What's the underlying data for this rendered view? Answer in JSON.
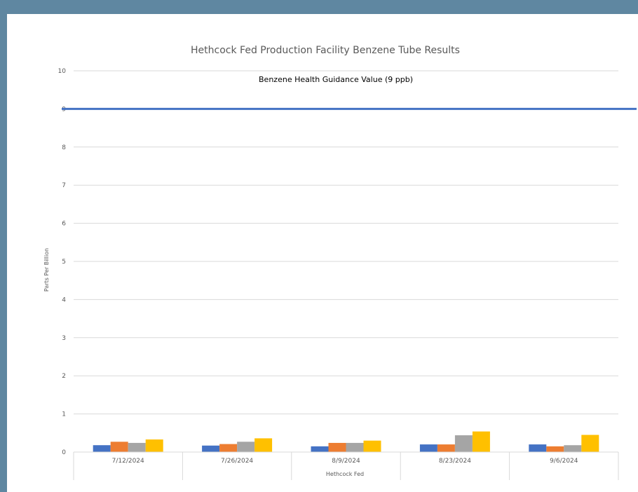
{
  "chart_data": {
    "type": "bar",
    "title": "Hethcock Fed Production Facility Benzene Tube Results",
    "xlabel": "Hethcock Fed",
    "ylabel": "Parts Per Billion",
    "ylim": [
      0,
      10
    ],
    "yticks": [
      "0",
      "1",
      "2",
      "3",
      "4",
      "5",
      "6",
      "7",
      "8",
      "9",
      "10"
    ],
    "categories": [
      "7/12/2024",
      "7/26/2024",
      "8/9/2024",
      "8/23/2024",
      "9/6/2024"
    ],
    "series": [
      {
        "color": "#4472c4",
        "values": [
          0.18,
          0.17,
          0.15,
          0.2,
          0.2
        ]
      },
      {
        "color": "#ed7d31",
        "values": [
          0.27,
          0.21,
          0.24,
          0.2,
          0.15
        ]
      },
      {
        "color": "#a5a5a5",
        "values": [
          0.24,
          0.27,
          0.24,
          0.44,
          0.18
        ]
      },
      {
        "color": "#ffc000",
        "values": [
          0.33,
          0.36,
          0.3,
          0.54,
          0.45
        ]
      }
    ],
    "reference_line": {
      "value": 9.0,
      "label": "Benzene Health Guidance Value (9 ppb)",
      "color": "#4472c4"
    },
    "grid": true,
    "legend": "none"
  }
}
